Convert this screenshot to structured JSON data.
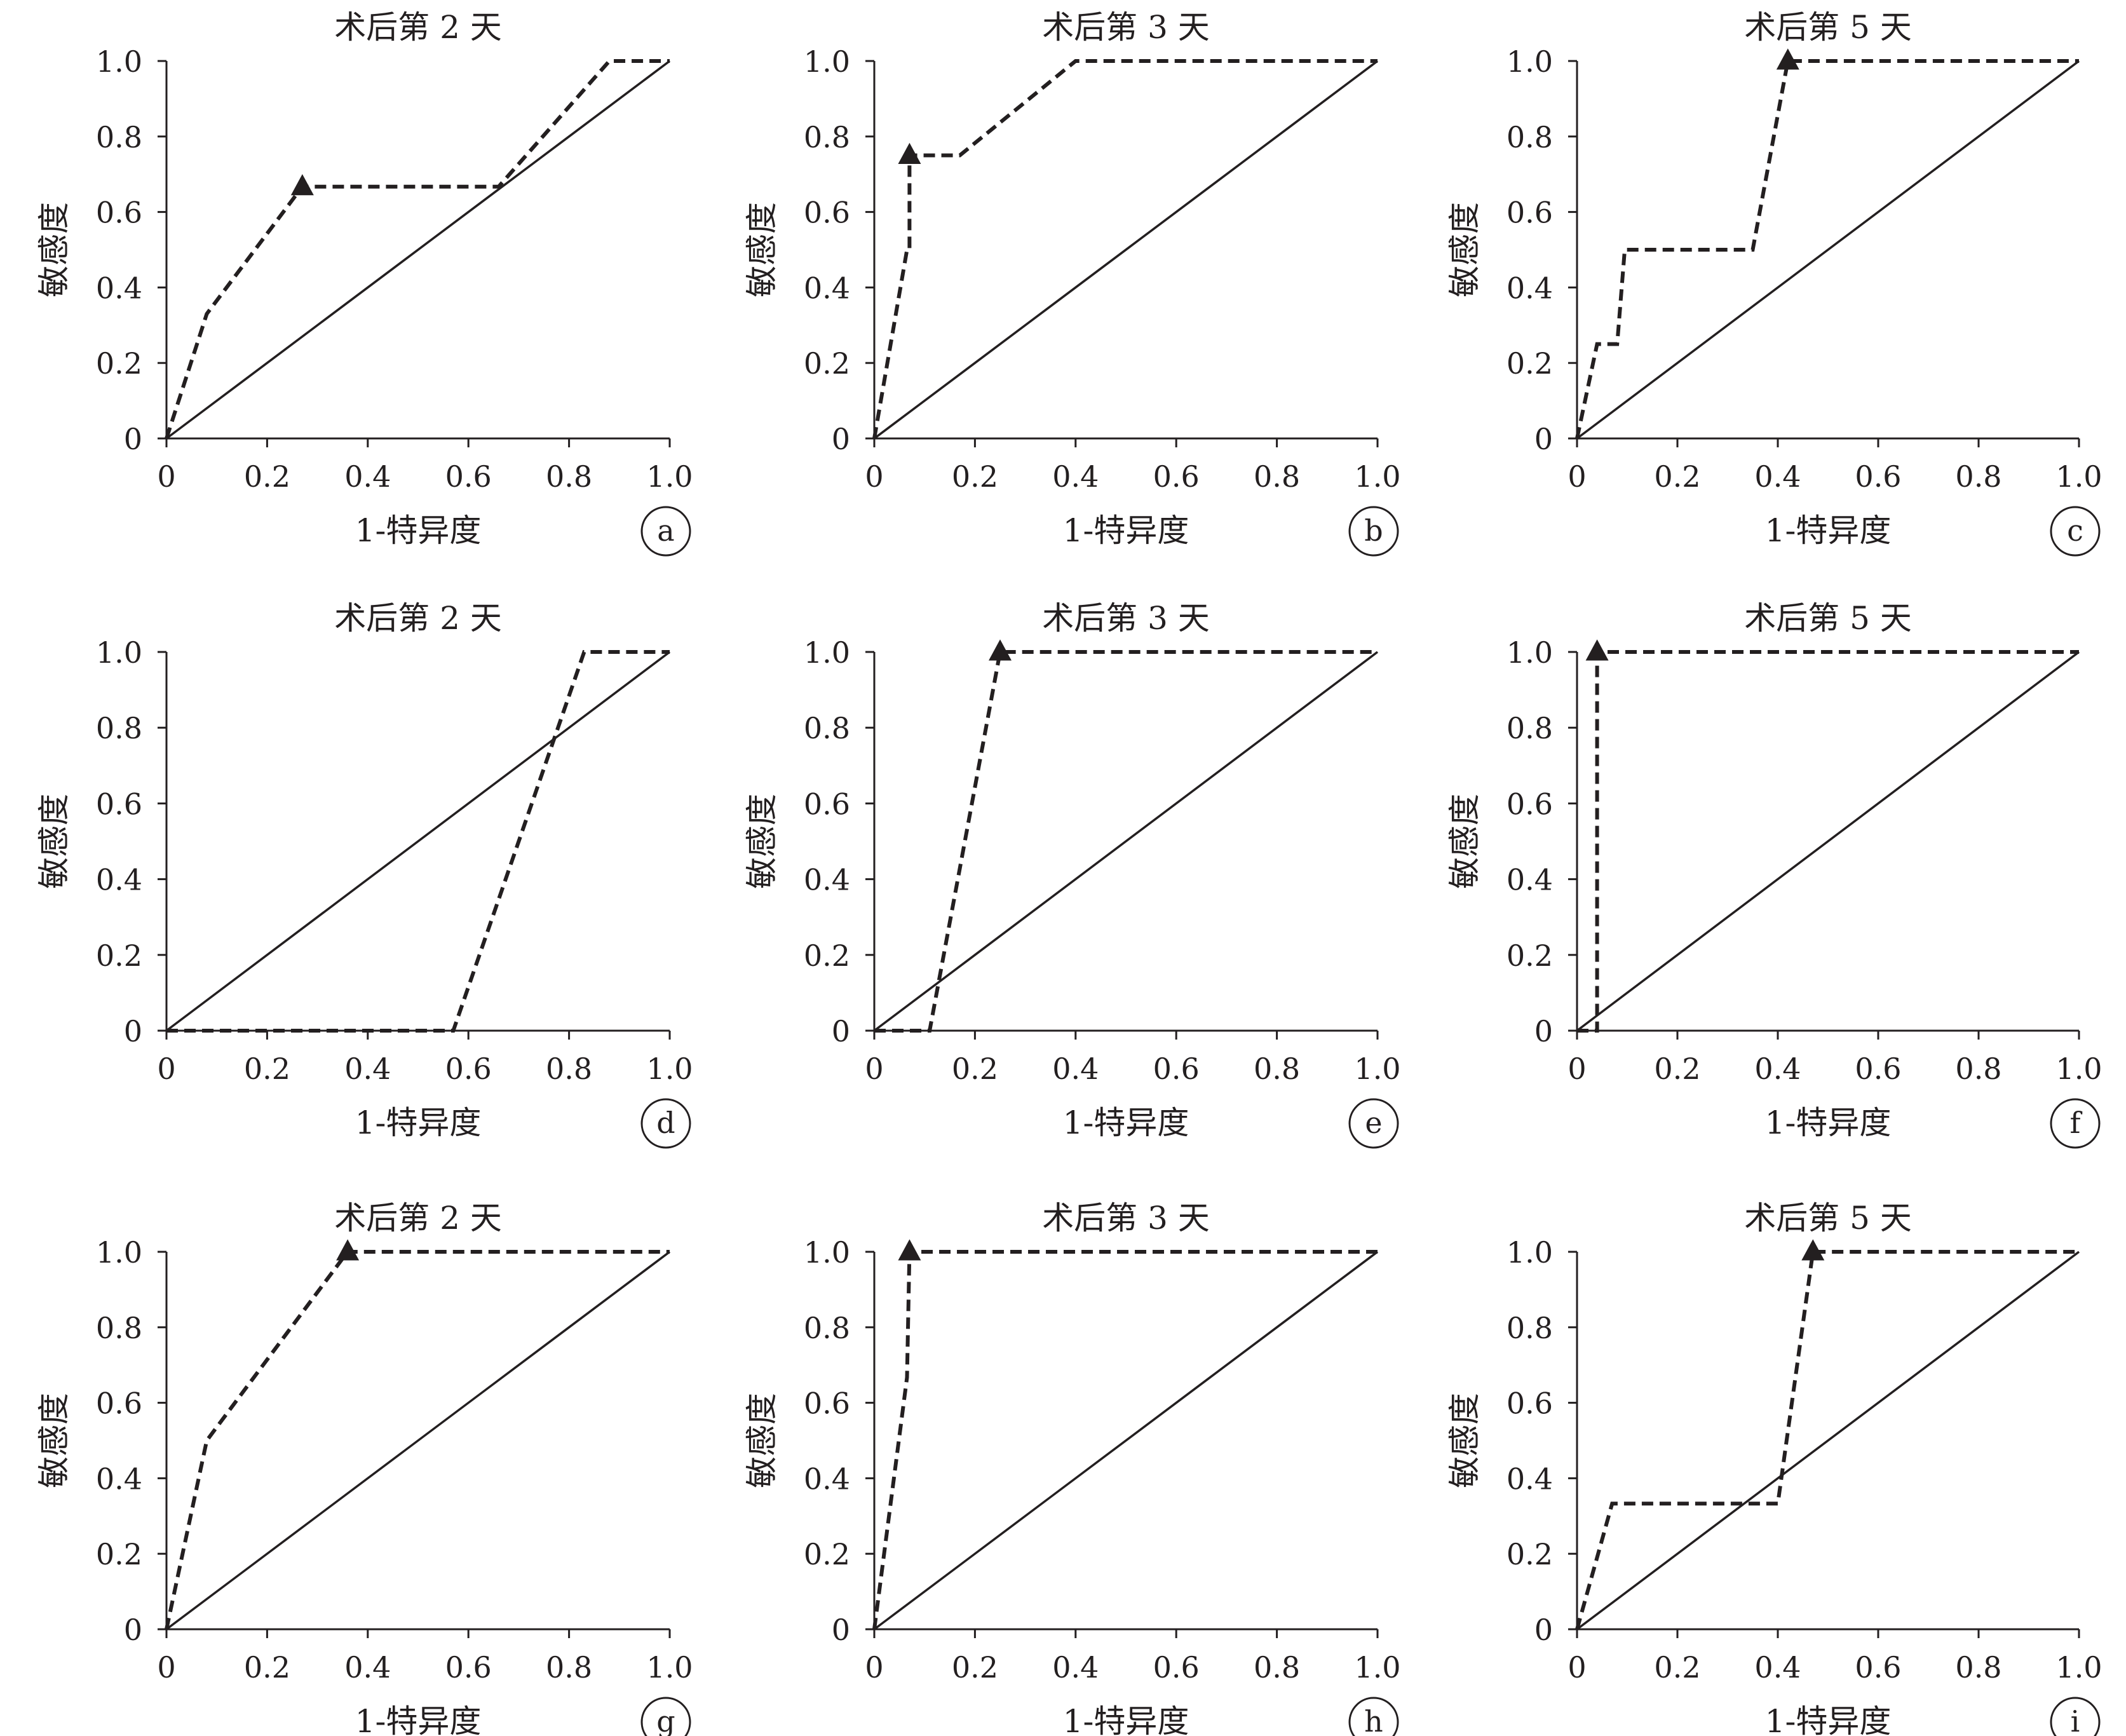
{
  "figure": {
    "ticks": [
      "0",
      "0.2",
      "0.4",
      "0.6",
      "0.8",
      "1.0"
    ],
    "ylabel": "敏感度",
    "xlabel": "1-特异度"
  },
  "chart_data": [
    {
      "type": "line",
      "title": "术后第 2 天",
      "panel_label": "a",
      "xlim": [
        0,
        1
      ],
      "ylim": [
        0,
        1
      ],
      "roc_x": [
        0,
        0.08,
        0.27,
        0.66,
        0.88,
        1.0
      ],
      "roc_y": [
        0,
        0.33,
        0.667,
        0.667,
        1.0,
        1.0
      ],
      "optimal_point": [
        0.27,
        0.667
      ]
    },
    {
      "type": "line",
      "title": "术后第 3 天",
      "panel_label": "b",
      "xlim": [
        0,
        1
      ],
      "ylim": [
        0,
        1
      ],
      "roc_x": [
        0,
        0.065,
        0.07,
        0.07,
        0.17,
        0.4,
        1.0
      ],
      "roc_y": [
        0,
        0.5,
        0.5,
        0.75,
        0.75,
        1.0,
        1.0
      ],
      "optimal_point": [
        0.07,
        0.75
      ]
    },
    {
      "type": "line",
      "title": "术后第 5 天",
      "panel_label": "c",
      "xlim": [
        0,
        1
      ],
      "ylim": [
        0,
        1
      ],
      "roc_x": [
        0,
        0.04,
        0.08,
        0.095,
        0.35,
        0.42,
        1.0
      ],
      "roc_y": [
        0,
        0.25,
        0.25,
        0.5,
        0.5,
        1.0,
        1.0
      ],
      "optimal_point": [
        0.42,
        1.0
      ]
    },
    {
      "type": "line",
      "title": "术后第 2 天",
      "panel_label": "d",
      "xlim": [
        0,
        1
      ],
      "ylim": [
        0,
        1
      ],
      "roc_x": [
        0,
        0.57,
        0.83,
        1.0
      ],
      "roc_y": [
        0,
        0,
        1.0,
        1.0
      ],
      "optimal_point": null
    },
    {
      "type": "line",
      "title": "术后第 3 天",
      "panel_label": "e",
      "xlim": [
        0,
        1
      ],
      "ylim": [
        0,
        1
      ],
      "roc_x": [
        0,
        0.11,
        0.25,
        1.0
      ],
      "roc_y": [
        0,
        0,
        1.0,
        1.0
      ],
      "optimal_point": [
        0.25,
        1.0
      ]
    },
    {
      "type": "line",
      "title": "术后第 5 天",
      "panel_label": "f",
      "xlim": [
        0,
        1
      ],
      "ylim": [
        0,
        1
      ],
      "roc_x": [
        0,
        0.04,
        0.04,
        1.0
      ],
      "roc_y": [
        0,
        0,
        1.0,
        1.0
      ],
      "optimal_point": [
        0.04,
        1.0
      ]
    },
    {
      "type": "line",
      "title": "术后第 2 天",
      "panel_label": "g",
      "xlim": [
        0,
        1
      ],
      "ylim": [
        0,
        1
      ],
      "roc_x": [
        0,
        0.08,
        0.36,
        1.0
      ],
      "roc_y": [
        0,
        0.5,
        1.0,
        1.0
      ],
      "optimal_point": [
        0.36,
        1.0
      ]
    },
    {
      "type": "line",
      "title": "术后第 3 天",
      "panel_label": "h",
      "xlim": [
        0,
        1
      ],
      "ylim": [
        0,
        1
      ],
      "roc_x": [
        0,
        0.065,
        0.07,
        1.0
      ],
      "roc_y": [
        0,
        0.667,
        1.0,
        1.0
      ],
      "optimal_point": [
        0.07,
        1.0
      ]
    },
    {
      "type": "line",
      "title": "术后第 5 天",
      "panel_label": "i",
      "xlim": [
        0,
        1
      ],
      "ylim": [
        0,
        1
      ],
      "roc_x": [
        0,
        0.07,
        0.4,
        0.47,
        1.0
      ],
      "roc_y": [
        0,
        0.333,
        0.333,
        1.0,
        1.0
      ],
      "optimal_point": [
        0.47,
        1.0
      ]
    }
  ]
}
